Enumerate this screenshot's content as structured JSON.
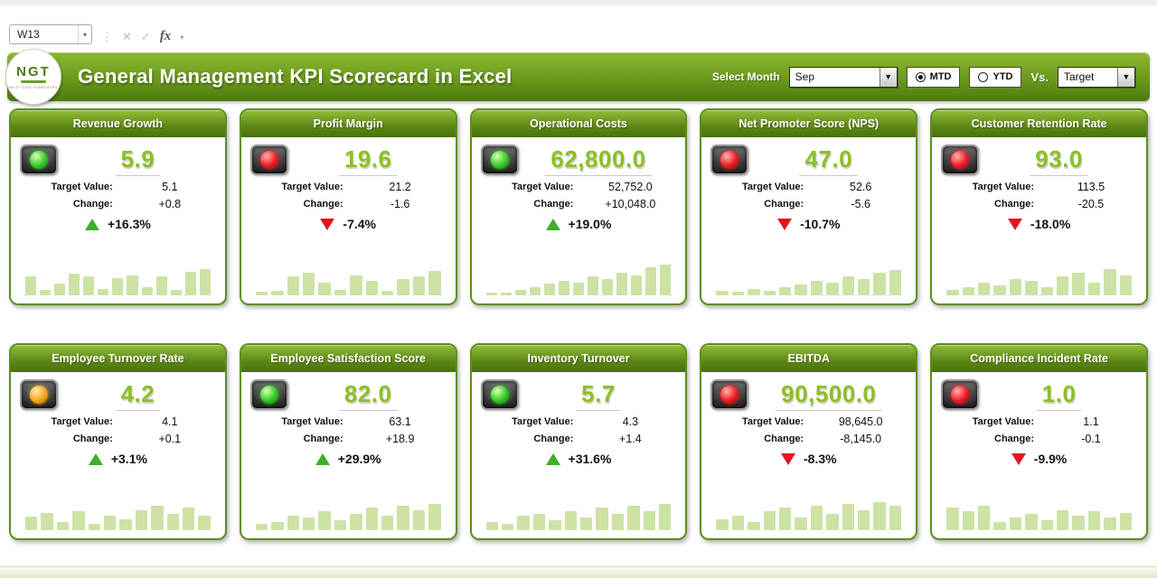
{
  "excel_bar": {
    "name_box": "W13",
    "cancel_icon": "✕",
    "confirm_icon": "✓",
    "fx_label": "fx"
  },
  "header": {
    "logo_text": "NGT",
    "logo_subtext": "NEXT GEN TEMPLATES",
    "title": "General Management KPI Scorecard in Excel",
    "select_month_label": "Select Month",
    "month_value": "Sep",
    "mtd_label": "MTD",
    "ytd_label": "YTD",
    "mtd_selected": true,
    "vs_label": "Vs.",
    "vs_value": "Target"
  },
  "labels": {
    "target": "Target Value:",
    "change": "Change:"
  },
  "colors": {
    "banner_green": "#6a9a1c",
    "card_border_green": "#5d8f1d",
    "value_green": "#8cc021",
    "bar_green": "#cde2a5",
    "status_green": "#35c926",
    "status_red": "#ee1c25",
    "status_amber": "#f5a81c",
    "arrow_up": "#3fae29",
    "arrow_down": "#e0161f"
  },
  "cards": [
    {
      "title": "Revenue Growth",
      "status": "green",
      "value": "5.9",
      "target": "5.1",
      "change": "+0.8",
      "pct": "+16.3%",
      "trend": "up",
      "bars": [
        48,
        14,
        30,
        55,
        50,
        16,
        44,
        52,
        20,
        48,
        14,
        60,
        68
      ]
    },
    {
      "title": "Profit Margin",
      "status": "red",
      "value": "19.6",
      "target": "21.2",
      "change": "-1.6",
      "pct": "-7.4%",
      "trend": "down",
      "bars": [
        10,
        12,
        48,
        58,
        32,
        14,
        52,
        38,
        12,
        42,
        48,
        62
      ]
    },
    {
      "title": "Operational Costs",
      "status": "green",
      "value": "62,800.0",
      "target": "52,752.0",
      "change": "+10,048.0",
      "pct": "+19.0%",
      "trend": "up",
      "bars": [
        6,
        8,
        14,
        22,
        30,
        38,
        32,
        48,
        42,
        58,
        52,
        72,
        78
      ]
    },
    {
      "title": "Net Promoter Score (NPS)",
      "status": "red",
      "value": "47.0",
      "target": "52.6",
      "change": "-5.6",
      "pct": "-10.7%",
      "trend": "down",
      "bars": [
        12,
        10,
        16,
        12,
        20,
        28,
        38,
        32,
        48,
        42,
        58,
        64
      ]
    },
    {
      "title": "Customer Retention Rate",
      "status": "red",
      "value": "93.0",
      "target": "113.5",
      "change": "-20.5",
      "pct": "-18.0%",
      "trend": "down",
      "bars": [
        14,
        20,
        32,
        26,
        42,
        38,
        22,
        48,
        58,
        32,
        68,
        52
      ]
    },
    {
      "title": "Employee Turnover Rate",
      "status": "amber",
      "value": "4.2",
      "target": "4.1",
      "change": "+0.1",
      "pct": "+3.1%",
      "trend": "up",
      "bars": [
        35,
        45,
        22,
        48,
        16,
        38,
        28,
        52,
        62,
        42,
        58,
        38
      ]
    },
    {
      "title": "Employee Satisfaction Score",
      "status": "green",
      "value": "82.0",
      "target": "63.1",
      "change": "+18.9",
      "pct": "+29.9%",
      "trend": "up",
      "bars": [
        16,
        22,
        38,
        32,
        48,
        26,
        42,
        58,
        38,
        62,
        52,
        68
      ]
    },
    {
      "title": "Inventory Turnover",
      "status": "green",
      "value": "5.7",
      "target": "4.3",
      "change": "+1.4",
      "pct": "+31.6%",
      "trend": "up",
      "bars": [
        22,
        16,
        38,
        42,
        26,
        48,
        32,
        58,
        42,
        62,
        48,
        68
      ]
    },
    {
      "title": "EBITDA",
      "status": "red",
      "value": "90,500.0",
      "target": "98,645.0",
      "change": "-8,145.0",
      "pct": "-8.3%",
      "trend": "down",
      "bars": [
        28,
        38,
        22,
        48,
        58,
        32,
        62,
        42,
        68,
        52,
        72,
        62
      ]
    },
    {
      "title": "Compliance Incident Rate",
      "status": "red",
      "value": "1.0",
      "target": "1.1",
      "change": "-0.1",
      "pct": "-9.9%",
      "trend": "down",
      "bars": [
        58,
        48,
        62,
        22,
        32,
        42,
        26,
        52,
        38,
        48,
        32,
        44
      ]
    }
  ]
}
